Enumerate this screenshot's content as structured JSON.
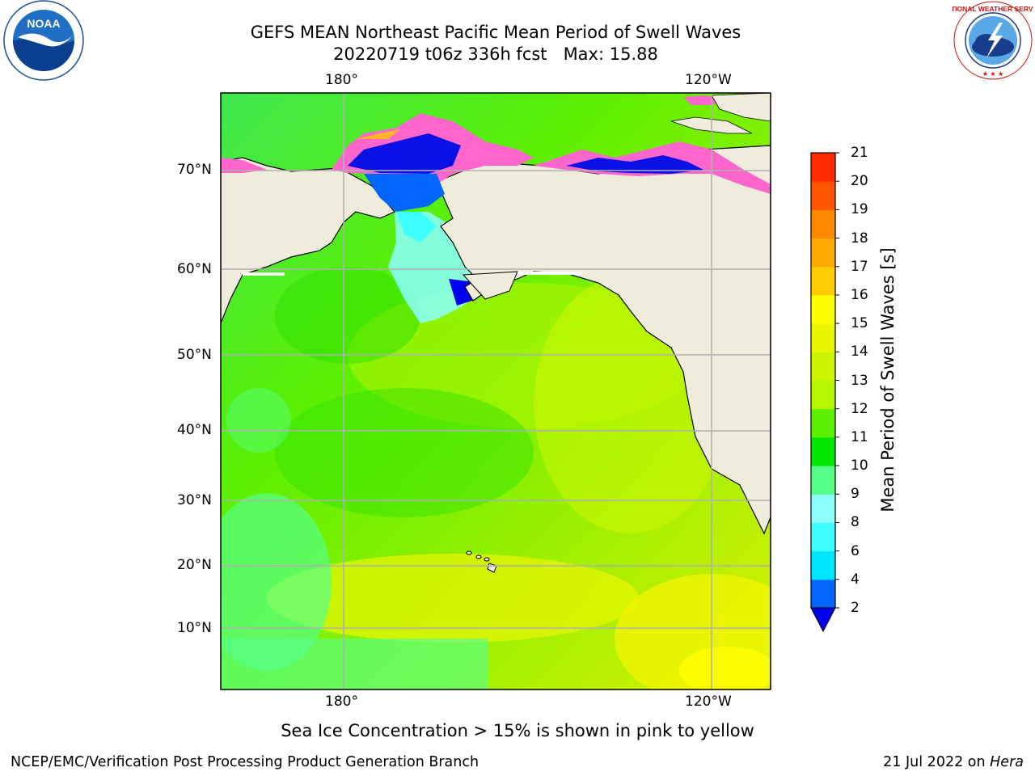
{
  "title_line1": "GEFS MEAN Northeast Pacific Mean Period of Swell Waves",
  "title_line2": "20220719 t06z 336h fcst   Max: 15.88",
  "axis": {
    "top_ticks": [
      "180°",
      "120°W"
    ],
    "bottom_ticks": [
      "180°",
      "120°W"
    ],
    "left_ticks": [
      "70°N",
      "60°N",
      "50°N",
      "40°N",
      "30°N",
      "20°N",
      "10°N"
    ]
  },
  "colorbar": {
    "label": "Mean Period of Swell Waves [s]",
    "ticks": [
      "2",
      "4",
      "6",
      "8",
      "9",
      "10",
      "11",
      "12",
      "13",
      "14",
      "15",
      "16",
      "17",
      "18",
      "19",
      "20",
      "21"
    ],
    "colors": [
      "#0066ff",
      "#00e5ff",
      "#3dffff",
      "#8cffff",
      "#55ff88",
      "#00e800",
      "#5cf000",
      "#b6f500",
      "#ccf500",
      "#eaf500",
      "#ffff00",
      "#ffcc00",
      "#ffaa00",
      "#ff8800",
      "#ff5500",
      "#ff2a00",
      "#ff0000"
    ],
    "extend_color": "#0000ee"
  },
  "caption": "Sea Ice Concentration > 15% is shown in pink to yellow",
  "footer_left": "NCEP/EMC/Verification Post Processing Product Generation Branch",
  "footer_right_date": "21 Jul 2022 on ",
  "footer_right_host": "Hera",
  "logos": {
    "noaa_text": "NOAA",
    "nws_text": "NATIONAL WEATHER SERVICE"
  }
}
